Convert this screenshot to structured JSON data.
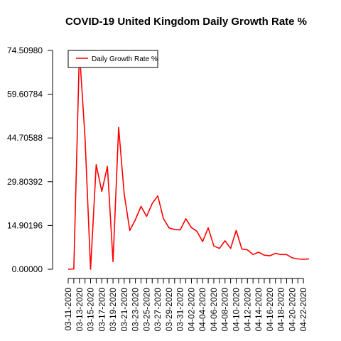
{
  "chart_data": {
    "type": "line",
    "title": "COVID-19 United Kingdom Daily Growth Rate %",
    "xlabel": "",
    "ylabel": "",
    "ylim": [
      0,
      74.5098
    ],
    "yticks": [
      "0.00000",
      "14.90196",
      "29.80392",
      "44.70588",
      "59.60784",
      "74.50980"
    ],
    "ytick_values": [
      0,
      14.90196,
      29.80392,
      44.70588,
      59.60784,
      74.5098
    ],
    "x_tick_labels": [
      "03-11-2020",
      "03-13-2020",
      "03-15-2020",
      "03-17-2020",
      "03-19-2020",
      "03-21-2020",
      "03-23-2020",
      "03-25-2020",
      "03-27-2020",
      "03-29-2020",
      "03-31-2020",
      "04-02-2020",
      "04-04-2020",
      "04-06-2020",
      "04-08-2020",
      "04-10-2020",
      "04-12-2020",
      "04-14-2020",
      "04-16-2020",
      "04-18-2020",
      "04-20-2020",
      "04-22-2020"
    ],
    "x_tick_positions": [
      0,
      2,
      4,
      6,
      8,
      10,
      12,
      14,
      16,
      18,
      20,
      22,
      24,
      26,
      28,
      30,
      32,
      34,
      36,
      38,
      40,
      42
    ],
    "legend": {
      "position": "top-left"
    },
    "grid": false,
    "series": [
      {
        "name": "Daily Growth Rate %",
        "color": "#ff0000",
        "values": [
          0,
          0.1,
          74.5,
          44.7,
          0,
          35.6,
          26.5,
          35.0,
          2.6,
          48.3,
          25.7,
          13.2,
          16.9,
          21.4,
          18.0,
          22.4,
          25.0,
          17.3,
          14.1,
          13.5,
          13.4,
          17.2,
          14.2,
          12.9,
          9.4,
          14.1,
          7.9,
          7.1,
          9.7,
          7.1,
          13.2,
          6.9,
          6.6,
          5.0,
          5.8,
          4.8,
          4.6,
          5.4,
          5.0,
          5.0,
          3.9,
          3.5,
          3.4,
          3.5
        ]
      }
    ]
  }
}
